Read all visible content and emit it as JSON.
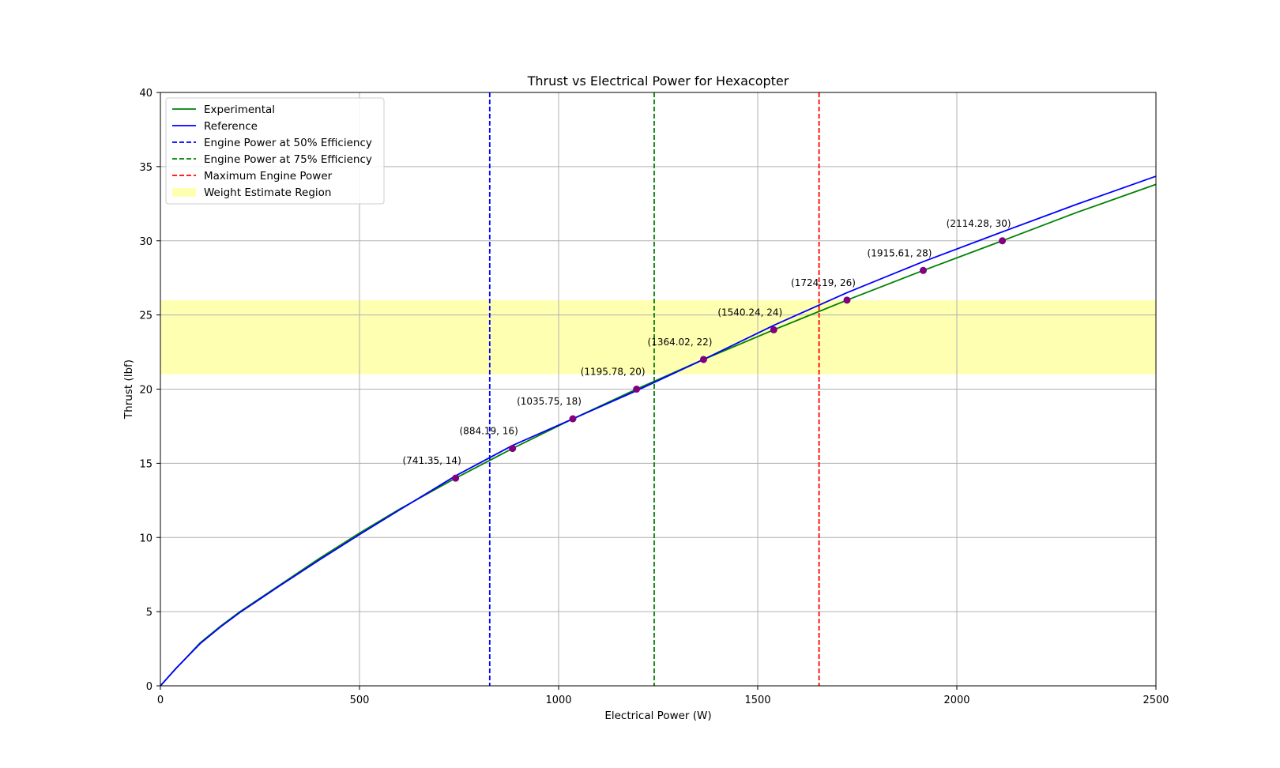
{
  "chart_data": {
    "type": "line",
    "title": "Thrust vs Electrical Power for Hexacopter",
    "xlabel": "Electrical Power (W)",
    "ylabel": "Thrust (lbf)",
    "xlim": [
      0,
      2500
    ],
    "ylim": [
      0,
      40
    ],
    "xticks": [
      0,
      500,
      1000,
      1500,
      2000,
      2500
    ],
    "yticks": [
      0,
      5,
      10,
      15,
      20,
      25,
      30,
      35,
      40
    ],
    "grid": true,
    "legend_position": "top-left",
    "series": [
      {
        "name": "Experimental",
        "color": "#008000",
        "x": [
          0,
          15,
          40,
          60,
          100,
          150,
          200,
          300,
          400,
          500,
          600,
          741.35,
          884.19,
          1035.75,
          1195.78,
          1364.02,
          1540.24,
          1724.19,
          1915.61,
          2114.28,
          2300,
          2500
        ],
        "y": [
          0,
          0.45,
          1.2,
          1.75,
          2.9,
          4.0,
          5.0,
          6.8,
          8.6,
          10.3,
          11.9,
          14,
          16,
          18,
          20,
          22,
          24,
          26,
          28,
          30,
          31.9,
          33.8
        ]
      },
      {
        "name": "Reference",
        "color": "#0000ff",
        "x": [
          0,
          15,
          40,
          60,
          100,
          150,
          200,
          300,
          400,
          500,
          600,
          741,
          884,
          1036,
          1196,
          1364,
          1540,
          1724,
          1916,
          2114,
          2300,
          2500
        ],
        "y": [
          0,
          0.45,
          1.2,
          1.75,
          2.85,
          3.95,
          4.95,
          6.75,
          8.5,
          10.2,
          11.85,
          14.15,
          16.2,
          18.0,
          19.9,
          22.0,
          24.3,
          26.5,
          28.6,
          30.6,
          32.45,
          34.35
        ]
      }
    ],
    "markers": {
      "color": "#800080",
      "points": [
        {
          "x": 741.35,
          "y": 14,
          "label": "(741.35, 14)"
        },
        {
          "x": 884.19,
          "y": 16,
          "label": "(884.19, 16)"
        },
        {
          "x": 1035.75,
          "y": 18,
          "label": "(1035.75, 18)"
        },
        {
          "x": 1195.78,
          "y": 20,
          "label": "(1195.78, 20)"
        },
        {
          "x": 1364.02,
          "y": 22,
          "label": "(1364.02, 22)"
        },
        {
          "x": 1540.24,
          "y": 24,
          "label": "(1540.24, 24)"
        },
        {
          "x": 1724.19,
          "y": 26,
          "label": "(1724.19, 26)"
        },
        {
          "x": 1915.61,
          "y": 28,
          "label": "(1915.61, 28)"
        },
        {
          "x": 2114.28,
          "y": 30,
          "label": "(2114.28, 30)"
        }
      ]
    },
    "vlines": [
      {
        "name": "Engine Power at 50% Efficiency",
        "x": 827,
        "color": "#0000ff",
        "style": "dashed"
      },
      {
        "name": "Engine Power at 75% Efficiency",
        "x": 1240,
        "color": "#008000",
        "style": "dashed"
      },
      {
        "name": "Maximum Engine Power",
        "x": 1654,
        "color": "#ff0000",
        "style": "dashed"
      }
    ],
    "band": {
      "name": "Weight Estimate Region",
      "y_from": 21,
      "y_to": 26,
      "color": "#ffff00",
      "opacity": 0.3
    }
  }
}
